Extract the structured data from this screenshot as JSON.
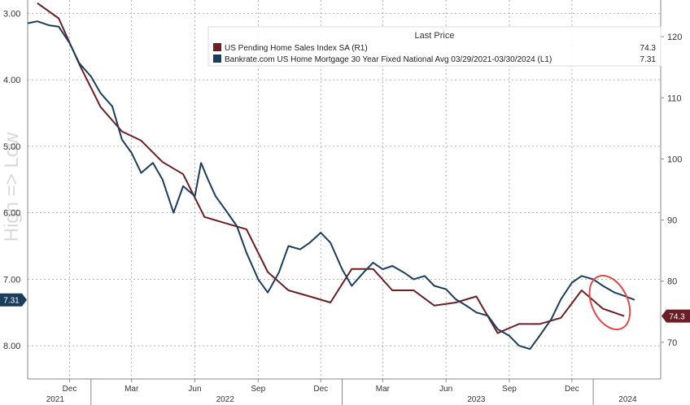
{
  "chart_data": {
    "type": "line",
    "title": "",
    "watermark": "High => Low",
    "x_domain": [
      "2021-10-01",
      "2024-04-08"
    ],
    "grid": true,
    "legend": {
      "placement": "top-right",
      "header": "Last Price",
      "entries": [
        {
          "label": "US Pending Home Sales Index SA  (R1)",
          "value": "74.3",
          "color": "#6a1f24"
        },
        {
          "label": "Bankrate.com US Home Mortgage 30 Year Fixed National Avg 03/29/2021-03/30/2024   (L1)",
          "value": "7.31",
          "color": "#1b3d5c"
        }
      ]
    },
    "left_axis": {
      "inverted": true,
      "range": [
        2.8,
        8.5
      ],
      "ticks": [
        3,
        4,
        5,
        6,
        7,
        8
      ],
      "tick_labels": [
        "3.00",
        "4.00",
        "5.00",
        "6.00",
        "7.00",
        "8.00"
      ],
      "last_value_label": "7.31",
      "last_value": 7.31
    },
    "right_axis": {
      "range": [
        64,
        126
      ],
      "ticks": [
        70,
        80,
        90,
        100,
        110,
        120
      ],
      "tick_labels": [
        "70",
        "80",
        "90",
        "100",
        "110",
        "120"
      ],
      "last_value_label": "74.3",
      "last_value": 74.3
    },
    "x_ticks": [
      {
        "date": "2021-12-01",
        "label": "Dec"
      },
      {
        "date": "2022-03-01",
        "label": "Mar"
      },
      {
        "date": "2022-06-01",
        "label": "Jun"
      },
      {
        "date": "2022-09-01",
        "label": "Sep"
      },
      {
        "date": "2022-12-01",
        "label": "Dec"
      },
      {
        "date": "2023-03-01",
        "label": "Mar"
      },
      {
        "date": "2023-06-01",
        "label": "Jun"
      },
      {
        "date": "2023-09-01",
        "label": "Sep"
      },
      {
        "date": "2023-12-01",
        "label": "Dec"
      }
    ],
    "year_labels": [
      {
        "date": "2021-11-10",
        "label": "2021"
      },
      {
        "date": "2022-07-15",
        "label": "2022"
      },
      {
        "date": "2023-07-15",
        "label": "2023"
      },
      {
        "date": "2024-02-20",
        "label": "2024"
      }
    ],
    "year_boundaries": [
      "2022-01-01",
      "2023-01-01",
      "2024-01-01"
    ],
    "series": [
      {
        "name": "US Pending Home Sales Index SA",
        "axis": "right",
        "color": "#6a1f24",
        "points": [
          [
            "2021-10-15",
            125.5
          ],
          [
            "2021-11-15",
            123.0
          ],
          [
            "2021-12-15",
            115.5
          ],
          [
            "2022-01-15",
            108.5
          ],
          [
            "2022-02-15",
            104.5
          ],
          [
            "2022-03-15",
            103.0
          ],
          [
            "2022-04-15",
            99.5
          ],
          [
            "2022-05-15",
            97.5
          ],
          [
            "2022-06-15",
            90.5
          ],
          [
            "2022-07-15",
            89.5
          ],
          [
            "2022-08-15",
            88.5
          ],
          [
            "2022-09-15",
            81.5
          ],
          [
            "2022-10-15",
            78.5
          ],
          [
            "2022-11-15",
            77.5
          ],
          [
            "2022-12-15",
            76.5
          ],
          [
            "2023-01-15",
            82.0
          ],
          [
            "2023-02-15",
            82.0
          ],
          [
            "2023-03-15",
            78.5
          ],
          [
            "2023-04-15",
            78.5
          ],
          [
            "2023-05-15",
            76.0
          ],
          [
            "2023-06-15",
            76.5
          ],
          [
            "2023-07-15",
            77.5
          ],
          [
            "2023-08-15",
            71.5
          ],
          [
            "2023-09-15",
            73.0
          ],
          [
            "2023-10-15",
            73.0
          ],
          [
            "2023-11-15",
            74.0
          ],
          [
            "2023-12-15",
            78.5
          ],
          [
            "2024-01-15",
            75.5
          ],
          [
            "2024-02-15",
            74.3
          ]
        ]
      },
      {
        "name": "Bankrate.com US Home Mortgage 30 Year Fixed National Avg",
        "axis": "left",
        "color": "#1b3d5c",
        "points": [
          [
            "2021-10-01",
            3.15
          ],
          [
            "2021-10-15",
            3.12
          ],
          [
            "2021-11-01",
            3.18
          ],
          [
            "2021-11-15",
            3.2
          ],
          [
            "2021-12-01",
            3.45
          ],
          [
            "2021-12-15",
            3.75
          ],
          [
            "2022-01-01",
            3.95
          ],
          [
            "2022-01-15",
            4.2
          ],
          [
            "2022-02-01",
            4.4
          ],
          [
            "2022-02-15",
            4.9
          ],
          [
            "2022-03-01",
            5.1
          ],
          [
            "2022-03-15",
            5.4
          ],
          [
            "2022-04-01",
            5.25
          ],
          [
            "2022-04-15",
            5.5
          ],
          [
            "2022-05-01",
            6.0
          ],
          [
            "2022-05-15",
            5.6
          ],
          [
            "2022-06-01",
            5.75
          ],
          [
            "2022-06-10",
            5.25
          ],
          [
            "2022-06-20",
            5.5
          ],
          [
            "2022-07-01",
            5.75
          ],
          [
            "2022-07-15",
            5.95
          ],
          [
            "2022-08-01",
            6.2
          ],
          [
            "2022-08-15",
            6.6
          ],
          [
            "2022-09-01",
            7.0
          ],
          [
            "2022-09-15",
            7.2
          ],
          [
            "2022-10-01",
            6.9
          ],
          [
            "2022-10-15",
            6.5
          ],
          [
            "2022-11-01",
            6.55
          ],
          [
            "2022-11-15",
            6.45
          ],
          [
            "2022-12-01",
            6.3
          ],
          [
            "2022-12-15",
            6.45
          ],
          [
            "2023-01-01",
            6.85
          ],
          [
            "2023-01-15",
            7.1
          ],
          [
            "2023-02-01",
            6.9
          ],
          [
            "2023-02-15",
            6.75
          ],
          [
            "2023-03-01",
            6.85
          ],
          [
            "2023-03-15",
            6.8
          ],
          [
            "2023-04-01",
            6.9
          ],
          [
            "2023-04-15",
            7.0
          ],
          [
            "2023-05-01",
            6.95
          ],
          [
            "2023-05-15",
            7.1
          ],
          [
            "2023-06-01",
            7.15
          ],
          [
            "2023-06-15",
            7.3
          ],
          [
            "2023-07-01",
            7.4
          ],
          [
            "2023-07-15",
            7.5
          ],
          [
            "2023-08-01",
            7.55
          ],
          [
            "2023-08-15",
            7.75
          ],
          [
            "2023-09-01",
            7.85
          ],
          [
            "2023-09-15",
            8.0
          ],
          [
            "2023-10-01",
            8.05
          ],
          [
            "2023-10-15",
            7.85
          ],
          [
            "2023-11-01",
            7.6
          ],
          [
            "2023-11-15",
            7.3
          ],
          [
            "2023-12-01",
            7.05
          ],
          [
            "2023-12-15",
            6.95
          ],
          [
            "2024-01-01",
            7.0
          ],
          [
            "2024-01-15",
            7.1
          ],
          [
            "2024-02-01",
            7.2
          ],
          [
            "2024-02-15",
            7.25
          ],
          [
            "2024-03-01",
            7.31
          ]
        ]
      }
    ],
    "annotation": {
      "type": "ellipse",
      "color": "#e04a4a",
      "center_date": "2024-01-25",
      "center_right_value": 76.5
    }
  }
}
